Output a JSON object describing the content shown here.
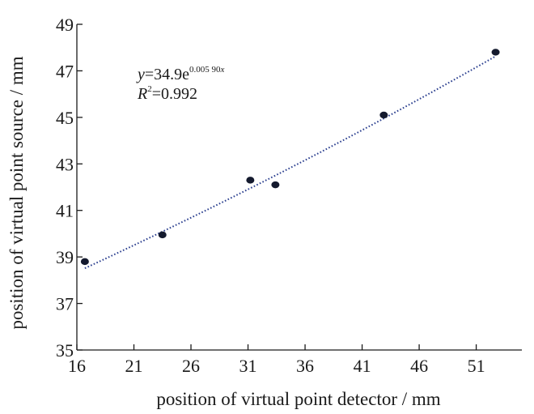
{
  "chart_data": {
    "type": "scatter",
    "xlabel": "position of virtual point detector / mm",
    "ylabel": "position of virtual point source / mm",
    "xlim": [
      16,
      55
    ],
    "ylim": [
      35,
      49
    ],
    "xticks": [
      16,
      21,
      26,
      31,
      36,
      41,
      46,
      51
    ],
    "yticks": [
      35,
      37,
      39,
      41,
      43,
      45,
      47,
      49
    ],
    "grid": false,
    "legend": "none",
    "points": [
      {
        "x": 16.7,
        "y": 38.8
      },
      {
        "x": 23.5,
        "y": 39.95
      },
      {
        "x": 31.2,
        "y": 42.3
      },
      {
        "x": 33.4,
        "y": 42.1
      },
      {
        "x": 42.9,
        "y": 45.1
      },
      {
        "x": 52.7,
        "y": 47.8
      }
    ],
    "trendline": {
      "type": "exponential",
      "a": 34.9,
      "b": 0.0059,
      "x_range": [
        16.7,
        52.7
      ],
      "style": "dotted",
      "color": "#2b3f8f"
    },
    "annotation": {
      "equation_y": "y",
      "equation_eq": "=34.9e",
      "equation_exp_num": "0.005 90",
      "equation_exp_var": "x",
      "r2_r": "R",
      "r2_sup": "2",
      "r2_eq": "=0.992"
    },
    "colors": {
      "marker": "#141a2e",
      "axis": "#1a1a1a"
    }
  }
}
